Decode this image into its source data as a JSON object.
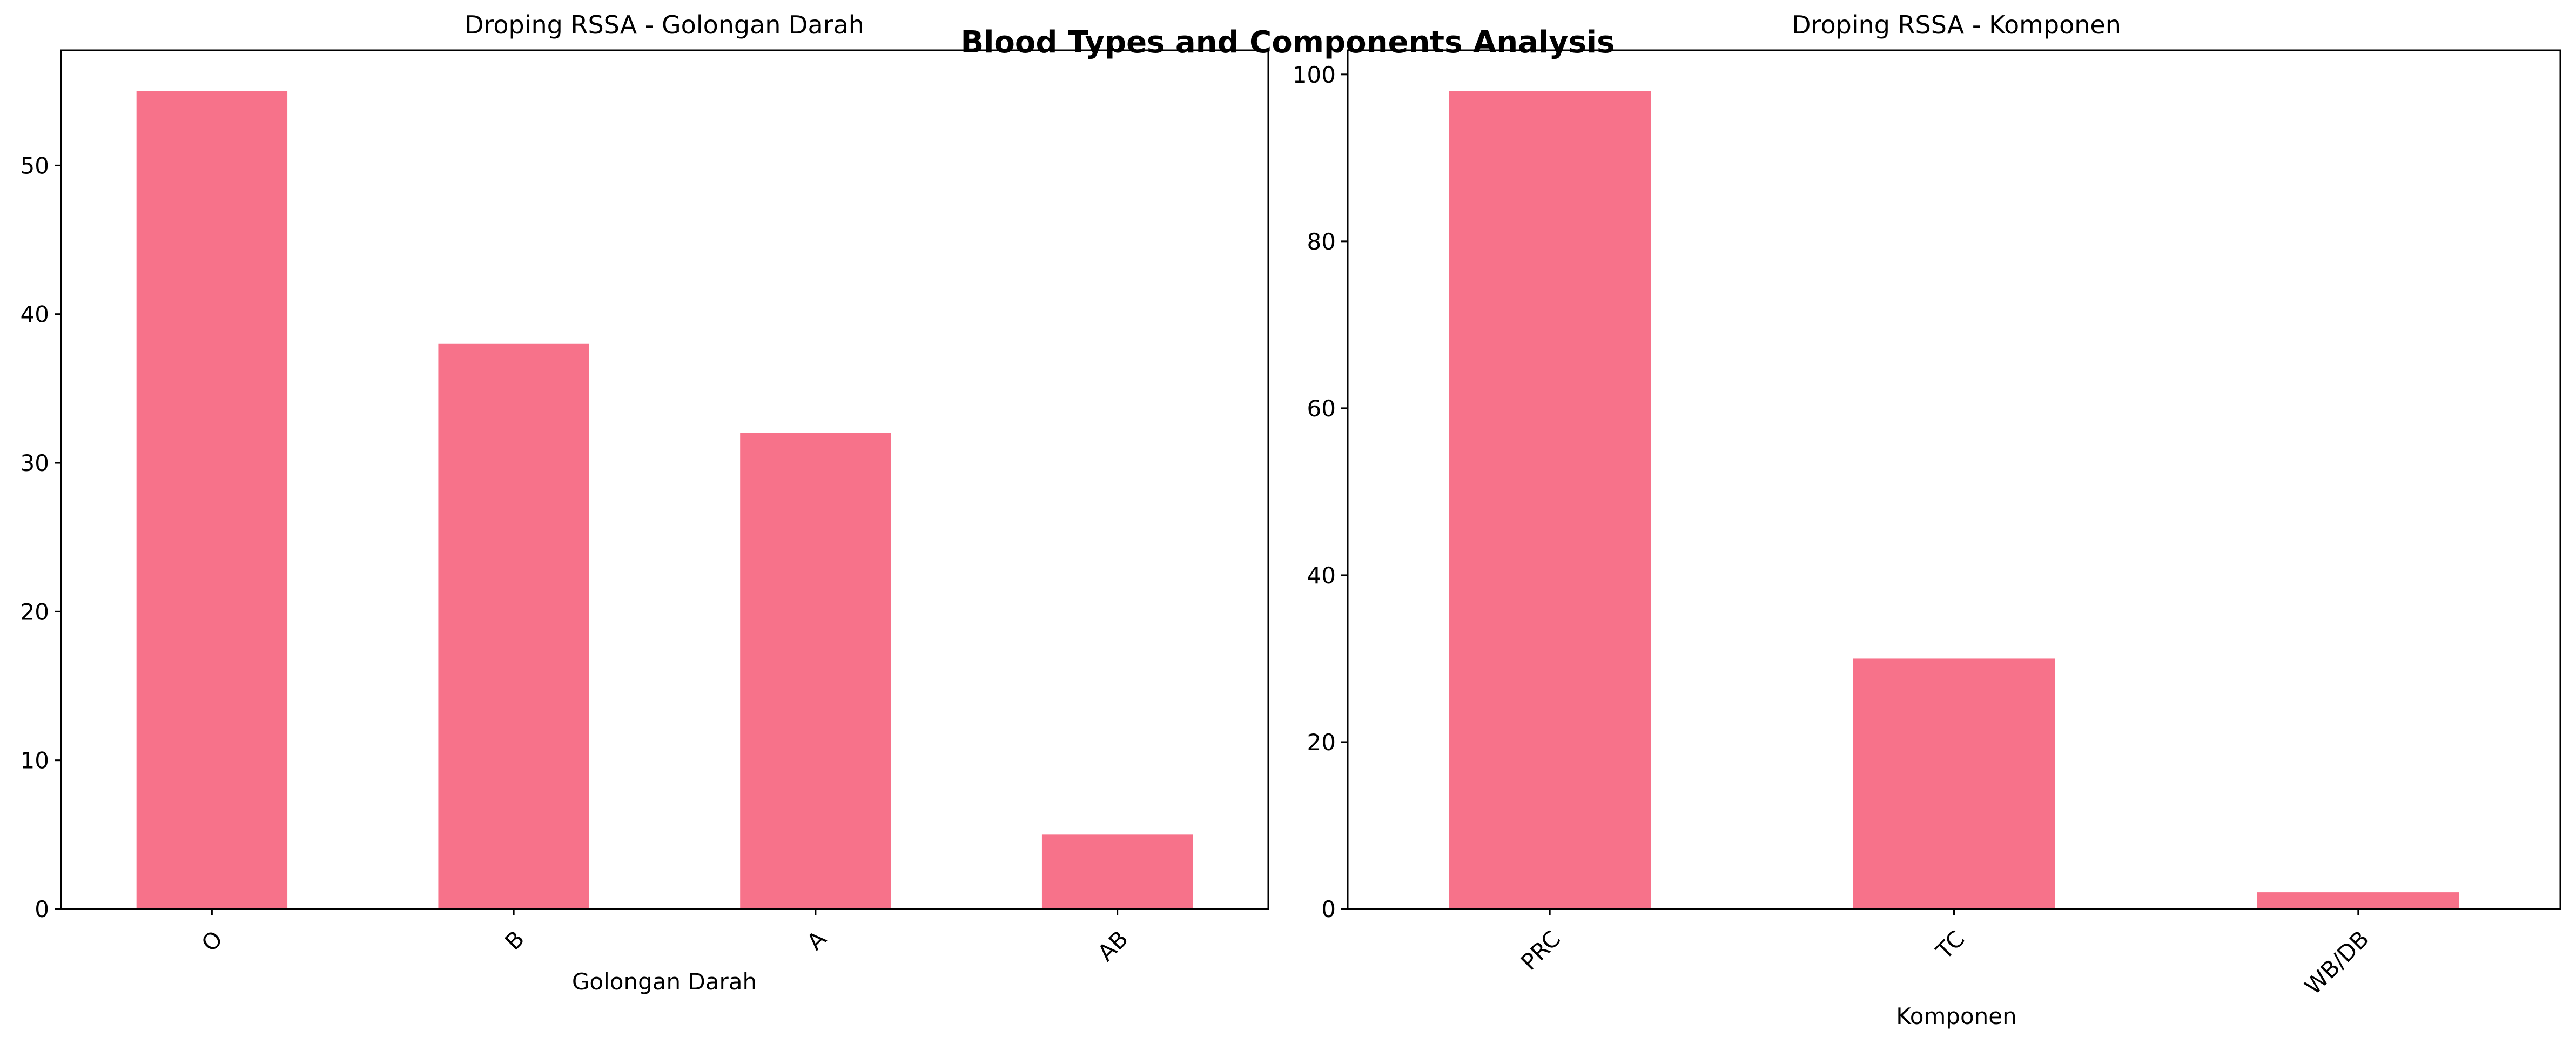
{
  "figure": {
    "suptitle": "Blood Types and Components Analysis"
  },
  "chart_data": [
    {
      "type": "bar",
      "title": "Droping RSSA - Golongan Darah",
      "xlabel": "Golongan Darah",
      "ylabel": "",
      "categories": [
        "O",
        "B",
        "A",
        "AB"
      ],
      "values": [
        55,
        38,
        32,
        5
      ],
      "ylim": [
        0,
        57.75
      ],
      "yticks": [
        0,
        10,
        20,
        30,
        40,
        50
      ],
      "color": "#f7728a",
      "grid": false,
      "legend": false
    },
    {
      "type": "bar",
      "title": "Droping RSSA - Komponen",
      "xlabel": "Komponen",
      "ylabel": "",
      "categories": [
        "PRC",
        "TC",
        "WB/DB"
      ],
      "values": [
        98,
        30,
        2
      ],
      "ylim": [
        0,
        102.9
      ],
      "yticks": [
        0,
        20,
        40,
        60,
        80,
        100
      ],
      "color": "#f7728a",
      "grid": false,
      "legend": false
    }
  ]
}
